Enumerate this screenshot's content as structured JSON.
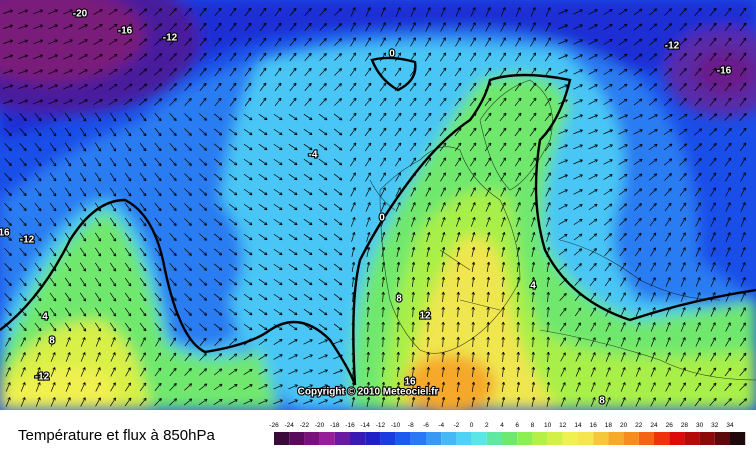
{
  "title": "Température et flux à 850hPa",
  "copyright": "Copyright © 2010 Meteociel.fr",
  "contour_labels": [
    -20,
    -16,
    -12,
    -12,
    -16,
    -4,
    0,
    0,
    16,
    -12,
    4,
    8,
    -12,
    8,
    12,
    4,
    16,
    8
  ],
  "legend": {
    "labels": [
      -26,
      -24,
      -22,
      -20,
      -18,
      -16,
      -14,
      -12,
      -10,
      -8,
      -6,
      -4,
      -2,
      0,
      2,
      4,
      6,
      8,
      10,
      12,
      14,
      16,
      18,
      20,
      22,
      24,
      26,
      28,
      30,
      32,
      34
    ],
    "colors": [
      "#3a0a3a",
      "#5a0a5a",
      "#7a107a",
      "#961e96",
      "#6a1aa0",
      "#3a1ab4",
      "#2020c8",
      "#1a3ce0",
      "#1a5af0",
      "#2a78f5",
      "#3a98f5",
      "#46b8f5",
      "#50d2f5",
      "#5ae6e6",
      "#60e8a0",
      "#6ee86e",
      "#8cf050",
      "#b4f046",
      "#d2f046",
      "#f0f050",
      "#f5e650",
      "#f5c83c",
      "#f5aa2a",
      "#f58c1e",
      "#f56414",
      "#f0320a",
      "#dc0a0a",
      "#b40a0a",
      "#8c0a0a",
      "#5a0a0a",
      "#1e0a0a"
    ]
  }
}
